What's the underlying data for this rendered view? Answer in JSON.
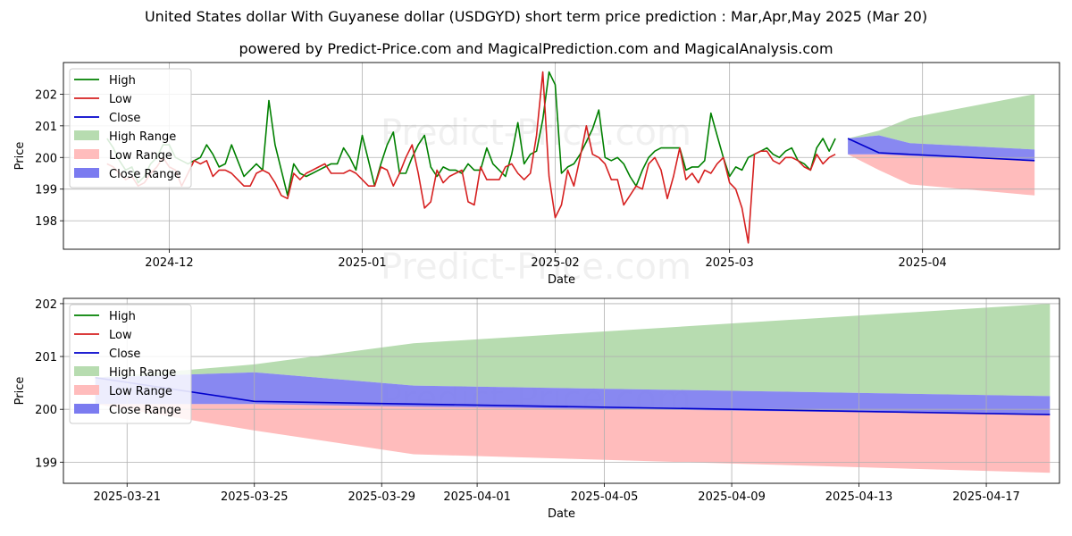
{
  "title": "United States dollar With Guyanese dollar (USDGYD) short term price prediction : Mar,Apr,May 2025 (Mar 20)",
  "subtitle": "powered by Predict-Price.com and MagicalPrediction.com and MagicalAnalysis.com",
  "watermark": "Predict-Price.com",
  "colors": {
    "high": "#008000",
    "low": "#d62020",
    "close": "#0000cc",
    "high_range": "#b7dcb0",
    "low_range": "#ffbcbc",
    "close_range": "#7b7bf0"
  },
  "chart_data": [
    {
      "type": "line",
      "xlabel": "Date",
      "ylabel": "Price",
      "ylim": [
        197.1,
        203.0
      ],
      "xlim": [
        "2024-11-14",
        "2025-04-23"
      ],
      "grid": true,
      "legend": "upper-left",
      "yticks": [
        198,
        199,
        200,
        201,
        202
      ],
      "xticks": [
        {
          "date": "2024-12-01",
          "label": "2024-12"
        },
        {
          "date": "2025-01-01",
          "label": "2025-01"
        },
        {
          "date": "2025-02-01",
          "label": "2025-02"
        },
        {
          "date": "2025-03-01",
          "label": "2025-03"
        },
        {
          "date": "2025-04-01",
          "label": "2025-04"
        }
      ],
      "legend_entries": [
        "High",
        "Low",
        "Close",
        "High Range",
        "Low Range",
        "Close Range"
      ],
      "series": [
        {
          "name": "High",
          "start": "2024-11-21",
          "values": [
            200.6,
            200.3,
            199.9,
            199.6,
            199.7,
            199.2,
            199.4,
            199.8,
            200.0,
            200.4,
            200.4,
            200.0,
            199.9,
            199.8,
            199.9,
            200.0,
            200.4,
            200.1,
            199.7,
            199.8,
            200.4,
            199.9,
            199.4,
            199.6,
            199.8,
            199.6,
            201.8,
            200.4,
            199.6,
            198.8,
            199.8,
            199.5,
            199.4,
            199.5,
            199.6,
            199.7,
            199.8,
            199.8,
            200.3,
            200.0,
            199.6,
            200.7,
            199.9,
            199.1,
            199.8,
            200.4,
            200.8,
            199.5,
            199.5,
            200.0,
            200.4,
            200.7,
            199.7,
            199.4,
            199.7,
            199.6,
            199.6,
            199.5,
            199.8,
            199.6,
            199.6,
            200.3,
            199.8,
            199.6,
            199.4,
            200.1,
            201.1,
            199.8,
            200.1,
            200.2,
            201.2,
            202.7,
            202.3,
            199.5,
            199.7,
            199.8,
            200.1,
            200.5,
            200.9,
            201.5,
            200.0,
            199.9,
            200.0,
            199.8,
            199.4,
            199.1,
            199.6,
            200.0,
            200.2,
            200.3,
            200.3,
            200.3,
            200.3,
            199.6,
            199.7,
            199.7,
            199.9,
            201.4,
            200.7,
            200.0,
            199.4,
            199.7,
            199.6,
            200.0,
            200.1,
            200.2,
            200.3,
            200.1,
            200.0,
            200.2,
            200.3,
            199.9,
            199.8,
            199.6,
            200.3,
            200.6,
            200.2,
            200.6
          ]
        },
        {
          "name": "Low",
          "start": "2024-11-21",
          "values": [
            199.8,
            199.7,
            199.5,
            199.3,
            199.4,
            199.1,
            199.2,
            199.5,
            199.7,
            200.0,
            199.7,
            199.6,
            199.1,
            199.5,
            199.9,
            199.8,
            199.9,
            199.4,
            199.6,
            199.6,
            199.5,
            199.3,
            199.1,
            199.1,
            199.5,
            199.6,
            199.5,
            199.2,
            198.8,
            198.7,
            199.5,
            199.3,
            199.5,
            199.6,
            199.7,
            199.8,
            199.5,
            199.5,
            199.5,
            199.6,
            199.5,
            199.3,
            199.1,
            199.1,
            199.7,
            199.6,
            199.1,
            199.5,
            200.0,
            200.4,
            199.5,
            198.4,
            198.6,
            199.6,
            199.2,
            199.4,
            199.5,
            199.6,
            198.6,
            198.5,
            199.7,
            199.3,
            199.3,
            199.3,
            199.7,
            199.8,
            199.5,
            199.3,
            199.5,
            200.7,
            202.7,
            199.4,
            198.1,
            198.5,
            199.6,
            199.1,
            200.0,
            201.0,
            200.1,
            200.0,
            199.8,
            199.3,
            199.3,
            198.5,
            198.8,
            199.1,
            199.0,
            199.8,
            200.0,
            199.6,
            198.7,
            199.4,
            200.3,
            199.3,
            199.5,
            199.2,
            199.6,
            199.5,
            199.8,
            200.0,
            199.2,
            199.0,
            198.4,
            197.3,
            200.1,
            200.2,
            200.2,
            199.9,
            199.8,
            200.0,
            200.0,
            199.9,
            199.7,
            199.6,
            200.1,
            199.8,
            200.0,
            200.1
          ]
        },
        {
          "name": "Close",
          "dates": [
            "2025-03-20",
            "2025-03-25",
            "2025-04-19"
          ],
          "values": [
            200.6,
            200.15,
            199.9
          ]
        }
      ],
      "bands": [
        {
          "name": "High Range",
          "dates": [
            "2025-03-20",
            "2025-03-25",
            "2025-03-30",
            "2025-04-19"
          ],
          "lower": [
            200.6,
            200.7,
            200.45,
            200.25
          ],
          "upper": [
            200.6,
            200.85,
            201.25,
            202.0
          ]
        },
        {
          "name": "Low Range",
          "dates": [
            "2025-03-20",
            "2025-03-25",
            "2025-03-30",
            "2025-04-19"
          ],
          "lower": [
            200.1,
            199.6,
            199.15,
            198.8
          ],
          "upper": [
            200.1,
            200.1,
            200.1,
            199.9
          ]
        },
        {
          "name": "Close Range",
          "dates": [
            "2025-03-20",
            "2025-03-25",
            "2025-03-30",
            "2025-04-19"
          ],
          "lower": [
            200.1,
            200.1,
            200.05,
            199.9
          ],
          "upper": [
            200.6,
            200.7,
            200.45,
            200.25
          ]
        }
      ]
    },
    {
      "type": "line",
      "xlabel": "Date",
      "ylabel": "Price",
      "ylim": [
        198.6,
        202.1
      ],
      "xlim": [
        "2025-03-19",
        "2025-04-19.3"
      ],
      "grid": true,
      "legend": "upper-left",
      "yticks": [
        199,
        200,
        201,
        202
      ],
      "xticks": [
        {
          "date": "2025-03-21",
          "label": "2025-03-21"
        },
        {
          "date": "2025-03-25",
          "label": "2025-03-25"
        },
        {
          "date": "2025-03-29",
          "label": "2025-03-29"
        },
        {
          "date": "2025-04-01",
          "label": "2025-04-01"
        },
        {
          "date": "2025-04-05",
          "label": "2025-04-05"
        },
        {
          "date": "2025-04-09",
          "label": "2025-04-09"
        },
        {
          "date": "2025-04-13",
          "label": "2025-04-13"
        },
        {
          "date": "2025-04-17",
          "label": "2025-04-17"
        }
      ],
      "legend_entries": [
        "High",
        "Low",
        "Close",
        "High Range",
        "Low Range",
        "Close Range"
      ],
      "series": [
        {
          "name": "Close",
          "dates": [
            "2025-03-20",
            "2025-03-25",
            "2025-04-19"
          ],
          "values": [
            200.6,
            200.15,
            199.9
          ]
        }
      ],
      "bands": [
        {
          "name": "High Range",
          "dates": [
            "2025-03-20",
            "2025-03-25",
            "2025-03-30",
            "2025-04-19"
          ],
          "lower": [
            200.6,
            200.7,
            200.45,
            200.25
          ],
          "upper": [
            200.6,
            200.85,
            201.25,
            202.0
          ]
        },
        {
          "name": "Low Range",
          "dates": [
            "2025-03-20",
            "2025-03-25",
            "2025-03-30",
            "2025-04-19"
          ],
          "lower": [
            200.1,
            199.6,
            199.15,
            198.8
          ],
          "upper": [
            200.1,
            200.1,
            200.1,
            199.9
          ]
        },
        {
          "name": "Close Range",
          "dates": [
            "2025-03-20",
            "2025-03-25",
            "2025-03-30",
            "2025-04-19"
          ],
          "lower": [
            200.1,
            200.1,
            200.05,
            199.9
          ],
          "upper": [
            200.6,
            200.7,
            200.45,
            200.25
          ]
        }
      ]
    }
  ]
}
